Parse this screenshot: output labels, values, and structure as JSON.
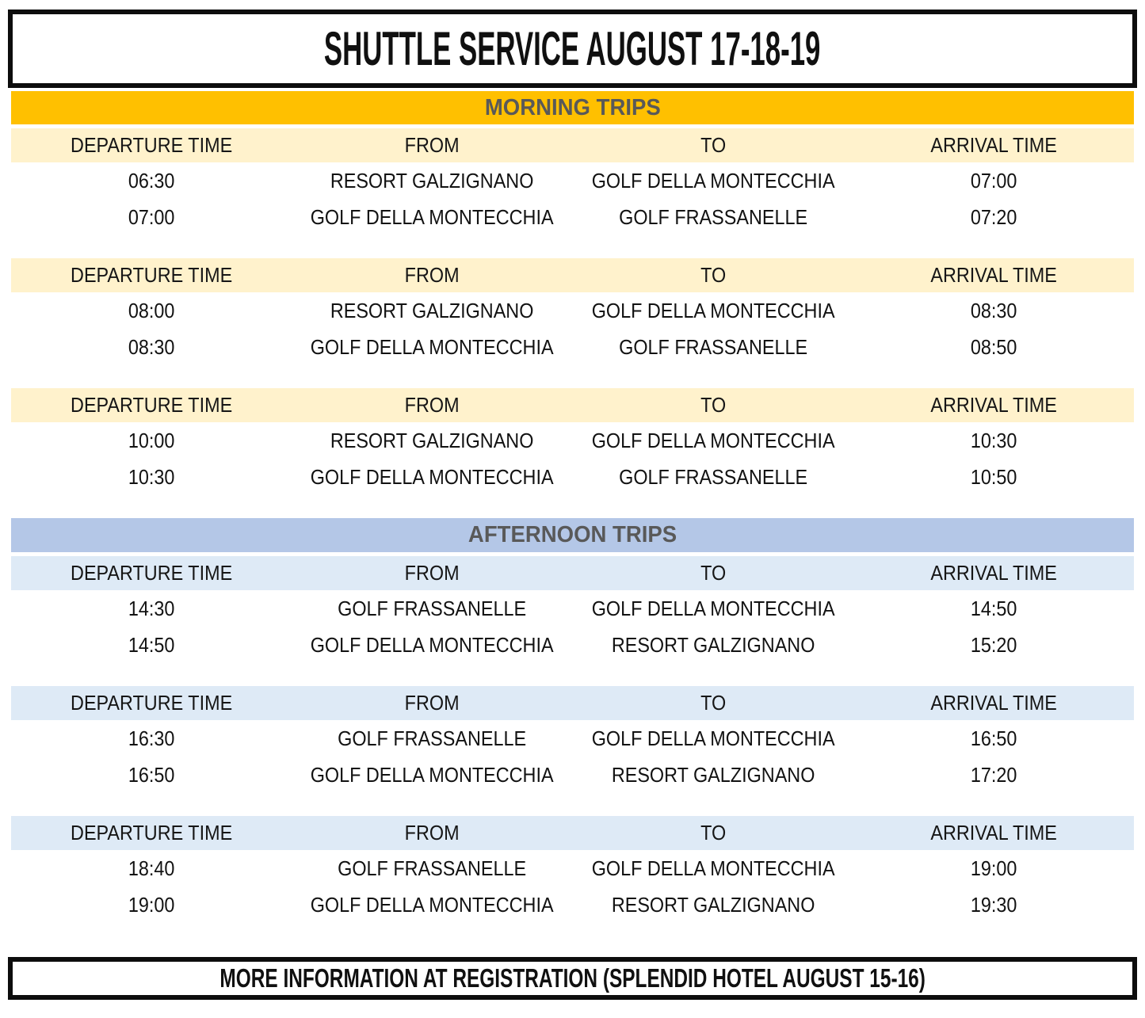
{
  "title": "SHUTTLE SERVICE AUGUST 17-18-19",
  "footer": "MORE INFORMATION AT REGISTRATION (SPLENDID HOTEL AUGUST 15-16)",
  "columns": [
    "DEPARTURE TIME",
    "FROM",
    "TO",
    "ARRIVAL TIME"
  ],
  "colors": {
    "morning_band": "#FFC000",
    "morning_header": "#FFF2CC",
    "afternoon_band": "#B4C7E7",
    "afternoon_header": "#DEEAF6",
    "section_label_text": "#595959"
  },
  "sections": [
    {
      "label": "MORNING TRIPS",
      "groups": [
        {
          "rows": [
            [
              "06:30",
              "RESORT GALZIGNANO",
              "GOLF DELLA MONTECCHIA",
              "07:00"
            ],
            [
              "07:00",
              "GOLF DELLA MONTECCHIA",
              "GOLF FRASSANELLE",
              "07:20"
            ]
          ]
        },
        {
          "rows": [
            [
              "08:00",
              "RESORT GALZIGNANO",
              "GOLF DELLA MONTECCHIA",
              "08:30"
            ],
            [
              "08:30",
              "GOLF DELLA MONTECCHIA",
              "GOLF FRASSANELLE",
              "08:50"
            ]
          ]
        },
        {
          "rows": [
            [
              "10:00",
              "RESORT GALZIGNANO",
              "GOLF DELLA MONTECCHIA",
              "10:30"
            ],
            [
              "10:30",
              "GOLF DELLA MONTECCHIA",
              "GOLF FRASSANELLE",
              "10:50"
            ]
          ]
        }
      ]
    },
    {
      "label": "AFTERNOON TRIPS",
      "groups": [
        {
          "rows": [
            [
              "14:30",
              "GOLF FRASSANELLE",
              "GOLF DELLA MONTECCHIA",
              "14:50"
            ],
            [
              "14:50",
              "GOLF DELLA MONTECCHIA",
              "RESORT GALZIGNANO",
              "15:20"
            ]
          ]
        },
        {
          "rows": [
            [
              "16:30",
              "GOLF FRASSANELLE",
              "GOLF DELLA MONTECCHIA",
              "16:50"
            ],
            [
              "16:50",
              "GOLF DELLA MONTECCHIA",
              "RESORT GALZIGNANO",
              "17:20"
            ]
          ]
        },
        {
          "rows": [
            [
              "18:40",
              "GOLF FRASSANELLE",
              "GOLF DELLA MONTECCHIA",
              "19:00"
            ],
            [
              "19:00",
              "GOLF DELLA MONTECCHIA",
              "RESORT GALZIGNANO",
              "19:30"
            ]
          ]
        }
      ]
    }
  ]
}
